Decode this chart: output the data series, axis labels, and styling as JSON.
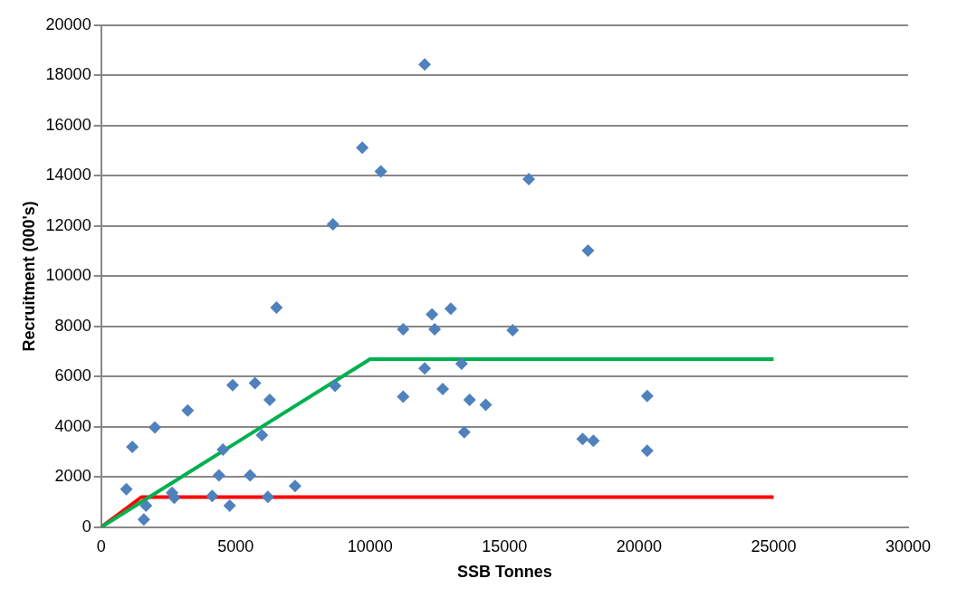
{
  "chart_data": {
    "type": "scatter",
    "xlabel": "SSB Tonnes",
    "ylabel": "Recruitment (000's)",
    "xlim": [
      0,
      30000
    ],
    "xticks": [
      0,
      5000,
      10000,
      15000,
      20000,
      25000,
      30000
    ],
    "ylim": [
      0,
      20000
    ],
    "yticks": [
      0,
      2000,
      4000,
      6000,
      8000,
      10000,
      12000,
      14000,
      16000,
      18000,
      20000
    ],
    "grid": "y",
    "legend": false,
    "marker": "diamond",
    "series": [
      {
        "type": "scatter",
        "color": "#4f81bd",
        "x": [
          940,
          1160,
          1590,
          1670,
          2000,
          2640,
          2720,
          3220,
          4130,
          4380,
          4530,
          4780,
          4890,
          5540,
          5720,
          5980,
          6200,
          6270,
          6520,
          7210,
          8620,
          8700,
          9710,
          10400,
          11230,
          11230,
          12030,
          12030,
          12300,
          12400,
          13000,
          12700,
          13400,
          13700,
          14300,
          13500,
          15300,
          15900,
          17900,
          18300,
          18100,
          20300,
          20300
        ],
        "values": [
          1520,
          3200,
          310,
          860,
          3980,
          1370,
          1170,
          4650,
          1250,
          2070,
          3090,
          860,
          5660,
          2070,
          5740,
          3670,
          1210,
          5080,
          8750,
          1640,
          12070,
          5630,
          15120,
          14180,
          7890,
          5200,
          18440,
          6330,
          8480,
          7890,
          8710,
          5510,
          6520,
          5080,
          4880,
          3790,
          7850,
          13870,
          3520,
          3440,
          11020,
          5230,
          3050
        ]
      },
      {
        "type": "line",
        "color": "#00b050",
        "x": [
          0,
          10000,
          25000
        ],
        "values": [
          0,
          6700,
          6700
        ],
        "marker": "none"
      },
      {
        "type": "line",
        "color": "#ff0000",
        "x": [
          0,
          1500,
          25000
        ],
        "values": [
          0,
          1200,
          1200
        ],
        "marker": "none"
      }
    ]
  }
}
